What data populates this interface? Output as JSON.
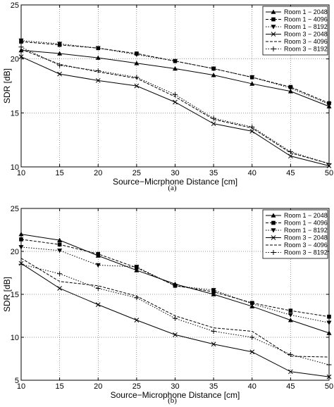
{
  "chart_data": [
    {
      "type": "line",
      "caption": "(a)",
      "xlabel": "Source−Micrphone Distance [cm]",
      "ylabel": "SDR [dB]",
      "xlim": [
        10,
        50
      ],
      "ylim": [
        10,
        25
      ],
      "xticks": [
        10,
        15,
        20,
        25,
        30,
        35,
        40,
        45,
        50
      ],
      "yticks": [
        10,
        15,
        20,
        25
      ],
      "grid": true,
      "legend_position": "top-right",
      "x": [
        10,
        15,
        20,
        25,
        30,
        35,
        40,
        45,
        50
      ],
      "series": [
        {
          "name": "Room 1 − 2048",
          "marker": "triangle-up",
          "dash": "solid",
          "values": [
            20.8,
            20.5,
            20.1,
            19.6,
            19.1,
            18.5,
            17.7,
            17.0,
            15.6
          ]
        },
        {
          "name": "Room 1 − 4096",
          "marker": "square",
          "dash": "dashed",
          "values": [
            21.6,
            21.3,
            21.0,
            20.5,
            19.8,
            19.1,
            18.3,
            17.4,
            15.9
          ]
        },
        {
          "name": "Room 1 − 8192",
          "marker": "triangle-down",
          "dash": "dotted",
          "values": [
            21.7,
            21.4,
            21.0,
            20.4,
            19.8,
            19.1,
            18.3,
            17.3,
            15.8
          ]
        },
        {
          "name": "Room 3 − 2048",
          "marker": "x",
          "dash": "solid",
          "values": [
            20.2,
            18.6,
            18.0,
            17.5,
            16.0,
            14.0,
            13.3,
            11.0,
            10.1
          ]
        },
        {
          "name": "Room 3 − 4096",
          "marker": "none",
          "dash": "dashed",
          "values": [
            20.9,
            19.5,
            18.8,
            18.2,
            16.5,
            14.4,
            13.6,
            11.3,
            10.3
          ]
        },
        {
          "name": "Room 3 − 8192",
          "marker": "plus",
          "dash": "dotted",
          "values": [
            21.1,
            19.4,
            18.9,
            18.3,
            16.7,
            14.5,
            13.7,
            11.4,
            10.3
          ]
        }
      ]
    },
    {
      "type": "line",
      "caption": "(b)",
      "xlabel": "Source−Microphone Distance [cm]",
      "ylabel": "SDR [dB]",
      "xlim": [
        10,
        50
      ],
      "ylim": [
        5,
        25
      ],
      "xticks": [
        10,
        15,
        20,
        25,
        30,
        35,
        40,
        45,
        50
      ],
      "yticks": [
        5,
        10,
        15,
        20,
        25
      ],
      "grid": true,
      "legend_position": "top-right",
      "x": [
        10,
        15,
        20,
        25,
        30,
        35,
        40,
        45,
        50
      ],
      "series": [
        {
          "name": "Room 1 − 2048",
          "marker": "triangle-up",
          "dash": "solid",
          "values": [
            22.0,
            21.3,
            19.5,
            17.8,
            16.2,
            15.0,
            13.6,
            12.0,
            10.5
          ]
        },
        {
          "name": "Room 1 − 4096",
          "marker": "square",
          "dash": "dashed",
          "values": [
            21.4,
            20.8,
            19.7,
            18.1,
            16.0,
            15.3,
            14.0,
            13.1,
            12.4
          ]
        },
        {
          "name": "Room 1 − 8192",
          "marker": "triangle-down",
          "dash": "dotted",
          "values": [
            20.5,
            20.1,
            18.4,
            18.2,
            16.0,
            15.5,
            13.9,
            12.6,
            11.7
          ]
        },
        {
          "name": "Room 3 − 2048",
          "marker": "x",
          "dash": "solid",
          "values": [
            18.6,
            15.7,
            13.8,
            12.0,
            10.3,
            9.2,
            8.3,
            6.0,
            5.4
          ]
        },
        {
          "name": "Room 3 − 4096",
          "marker": "none",
          "dash": "dashed",
          "values": [
            19.2,
            16.5,
            16.0,
            14.8,
            12.5,
            11.1,
            10.7,
            7.8,
            7.7
          ]
        },
        {
          "name": "Room 3 − 8192",
          "marker": "plus",
          "dash": "dotted",
          "values": [
            18.5,
            17.4,
            15.7,
            14.6,
            12.2,
            10.7,
            10.0,
            8.0,
            6.8
          ]
        }
      ]
    }
  ]
}
